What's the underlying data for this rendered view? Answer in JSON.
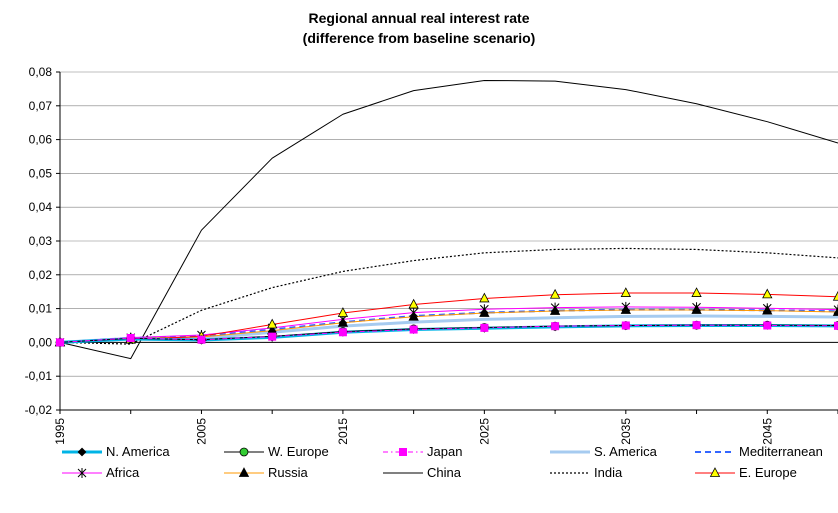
{
  "chart_data": {
    "type": "line",
    "title_lines": [
      "Regional annual real interest rate",
      "(difference from baseline scenario)"
    ],
    "xlabel": "",
    "ylabel": "",
    "x": [
      1995,
      2000,
      2005,
      2010,
      2015,
      2020,
      2025,
      2030,
      2035,
      2040,
      2045,
      2050
    ],
    "x_tick_labels": [
      "1995",
      "2005",
      "2015",
      "2025",
      "2035",
      "2045"
    ],
    "x_tick_values": [
      1995,
      2005,
      2015,
      2025,
      2035,
      2045
    ],
    "xlim": [
      1995,
      2050
    ],
    "ylim": [
      -0.02,
      0.08
    ],
    "y_tick_values": [
      -0.02,
      -0.01,
      0.0,
      0.01,
      0.02,
      0.03,
      0.04,
      0.05,
      0.06,
      0.07,
      0.08
    ],
    "y_tick_labels": [
      "-0,02",
      "-0,01",
      "0,00",
      "0,01",
      "0,02",
      "0,03",
      "0,04",
      "0,05",
      "0,06",
      "0,07",
      "0,08"
    ],
    "grid": "horizontal",
    "legend_position": "bottom",
    "series": [
      {
        "name": "N. America",
        "color": "#00b4e6",
        "dash": "solid",
        "width": 3,
        "marker": "diamond",
        "marker_color": "#000000",
        "values": [
          0.0,
          0.001,
          0.0007,
          0.0015,
          0.003,
          0.0038,
          0.0042,
          0.0046,
          0.0049,
          0.005,
          0.005,
          0.0049
        ]
      },
      {
        "name": "W. Europe",
        "color": "#000000",
        "dash": "solid",
        "width": 1,
        "marker": "circle",
        "marker_color": "#33cc33",
        "values": [
          0.0,
          0.0012,
          0.0008,
          0.0018,
          0.0032,
          0.004,
          0.0044,
          0.0048,
          0.005,
          0.0051,
          0.0051,
          0.005
        ]
      },
      {
        "name": "Japan",
        "color": "#ff00ff",
        "dash": "dashdot",
        "width": 1,
        "marker": "square",
        "marker_color": "#ff00ff",
        "values": [
          0.0,
          0.0013,
          0.0008,
          0.0017,
          0.003,
          0.0038,
          0.0043,
          0.0048,
          0.005,
          0.0051,
          0.005,
          0.0049
        ]
      },
      {
        "name": "S. America",
        "color": "#a6cbf0",
        "dash": "solid",
        "width": 3,
        "marker": "none",
        "marker_color": "#a6cbf0",
        "values": [
          0.0,
          0.0012,
          0.0012,
          0.003,
          0.0048,
          0.006,
          0.0068,
          0.0073,
          0.0077,
          0.0078,
          0.0077,
          0.0075
        ]
      },
      {
        "name": "Mediterranean",
        "color": "#3366ff",
        "dash": "dash",
        "width": 2,
        "marker": "none",
        "marker_color": "#3366ff",
        "values": [
          0.0,
          0.0013,
          0.0018,
          0.0038,
          0.006,
          0.0078,
          0.0088,
          0.0094,
          0.0097,
          0.0097,
          0.0095,
          0.0092
        ]
      },
      {
        "name": "Africa",
        "color": "#ff00ff",
        "dash": "solid",
        "width": 1,
        "marker": "star",
        "marker_color": "#000000",
        "values": [
          0.0,
          0.0014,
          0.0022,
          0.0043,
          0.0068,
          0.0088,
          0.0098,
          0.0103,
          0.0105,
          0.0104,
          0.0101,
          0.0097
        ]
      },
      {
        "name": "Russia",
        "color": "#ff9900",
        "dash": "solid",
        "width": 1,
        "marker": "triangle",
        "marker_color": "#000000",
        "values": [
          0.0,
          0.0012,
          0.0016,
          0.0035,
          0.0058,
          0.0076,
          0.0087,
          0.0093,
          0.0096,
          0.0096,
          0.0094,
          0.009
        ]
      },
      {
        "name": "China",
        "color": "#000000",
        "dash": "solid",
        "width": 1,
        "marker": "none",
        "marker_color": "#000000",
        "values": [
          0.0,
          -0.0048,
          0.0332,
          0.0545,
          0.0675,
          0.0745,
          0.0775,
          0.0773,
          0.0748,
          0.0706,
          0.0653,
          0.059
        ]
      },
      {
        "name": "India",
        "color": "#000000",
        "dash": "dot",
        "width": 1.2,
        "marker": "none",
        "marker_color": "#000000",
        "values": [
          0.0,
          -0.0005,
          0.0095,
          0.0162,
          0.021,
          0.0242,
          0.0265,
          0.0275,
          0.0278,
          0.0275,
          0.0265,
          0.025
        ]
      },
      {
        "name": "E. Europe",
        "color": "#ff0000",
        "dash": "solid",
        "width": 1,
        "marker": "triangle",
        "marker_color": "#ffff00",
        "values": [
          0.0,
          0.0008,
          0.0018,
          0.0053,
          0.0087,
          0.0112,
          0.013,
          0.0141,
          0.0146,
          0.0146,
          0.0142,
          0.0135
        ]
      }
    ]
  }
}
